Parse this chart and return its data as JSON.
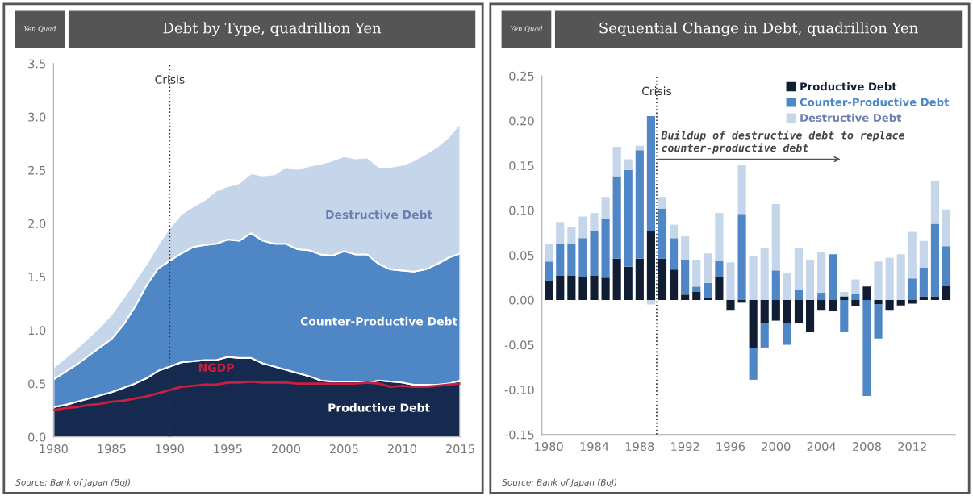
{
  "chart_data": [
    {
      "type": "area",
      "title": "Debt by Type, quadrillion Yen",
      "stacked": true,
      "x": [
        1980,
        1981,
        1982,
        1983,
        1984,
        1985,
        1986,
        1987,
        1988,
        1989,
        1990,
        1991,
        1992,
        1993,
        1994,
        1995,
        1996,
        1997,
        1998,
        1999,
        2000,
        2001,
        2002,
        2003,
        2004,
        2005,
        2006,
        2007,
        2008,
        2009,
        2010,
        2011,
        2012,
        2013,
        2014,
        2015
      ],
      "series": [
        {
          "name": "Productive Debt",
          "color": "#162a4f",
          "values": [
            0.28,
            0.3,
            0.33,
            0.36,
            0.39,
            0.42,
            0.46,
            0.5,
            0.55,
            0.62,
            0.66,
            0.7,
            0.71,
            0.72,
            0.72,
            0.75,
            0.74,
            0.74,
            0.69,
            0.66,
            0.63,
            0.6,
            0.57,
            0.53,
            0.52,
            0.52,
            0.52,
            0.51,
            0.53,
            0.52,
            0.51,
            0.49,
            0.49,
            0.49,
            0.5,
            0.53
          ]
        },
        {
          "name": "Counter-Productive Debt",
          "color": "#4f86c6",
          "values": [
            0.26,
            0.31,
            0.35,
            0.4,
            0.45,
            0.5,
            0.59,
            0.72,
            0.87,
            0.96,
            0.99,
            1.02,
            1.07,
            1.08,
            1.09,
            1.1,
            1.1,
            1.17,
            1.15,
            1.15,
            1.18,
            1.16,
            1.18,
            1.18,
            1.18,
            1.22,
            1.19,
            1.2,
            1.09,
            1.05,
            1.05,
            1.06,
            1.08,
            1.13,
            1.18,
            1.19
          ]
        },
        {
          "name": "Destructive Debt",
          "color": "#c5d5ea",
          "values": [
            0.11,
            0.13,
            0.15,
            0.17,
            0.19,
            0.23,
            0.25,
            0.24,
            0.2,
            0.22,
            0.31,
            0.37,
            0.38,
            0.42,
            0.5,
            0.5,
            0.54,
            0.56,
            0.61,
            0.65,
            0.72,
            0.75,
            0.79,
            0.85,
            0.89,
            0.89,
            0.9,
            0.91,
            0.91,
            0.96,
            0.99,
            1.04,
            1.08,
            1.1,
            1.13,
            1.22
          ]
        },
        {
          "name": "NGDP",
          "type": "line",
          "color": "#c8203f",
          "values": [
            0.25,
            0.27,
            0.28,
            0.3,
            0.31,
            0.33,
            0.34,
            0.36,
            0.38,
            0.41,
            0.44,
            0.47,
            0.48,
            0.49,
            0.49,
            0.51,
            0.51,
            0.52,
            0.51,
            0.51,
            0.51,
            0.5,
            0.5,
            0.5,
            0.5,
            0.5,
            0.5,
            0.51,
            0.5,
            0.47,
            0.48,
            0.47,
            0.47,
            0.48,
            0.49,
            0.5
          ]
        }
      ],
      "xlim": [
        1980,
        2015
      ],
      "xticks": [
        1980,
        1985,
        1990,
        1995,
        2000,
        2005,
        2010,
        2015
      ],
      "ylim": [
        0,
        3.5
      ],
      "yticks": [
        {
          "value": 0,
          "label": "0.0"
        },
        {
          "value": 0.5,
          "label": "0.5"
        },
        {
          "value": 1,
          "label": "1.0"
        },
        {
          "value": 1.5,
          "label": "1.5"
        },
        {
          "value": 2,
          "label": "2.0"
        },
        {
          "value": 2.5,
          "label": "2.5"
        },
        {
          "value": 3,
          "label": "3.0"
        },
        {
          "value": 3.5,
          "label": "3.5"
        }
      ],
      "ref_lines": [
        {
          "axis": "x",
          "value": 1990,
          "label": "Crisis",
          "color": "#333333",
          "line_style": "dotted"
        }
      ],
      "annotations": [
        "Yen Quad",
        "Source: Bank of Japan (BoJ)"
      ]
    },
    {
      "type": "bar",
      "title": "Sequential Change in Debt, quadrillion Yen",
      "stacked": true,
      "x": [
        1980,
        1981,
        1982,
        1983,
        1984,
        1985,
        1986,
        1987,
        1988,
        1989,
        1990,
        1991,
        1992,
        1993,
        1994,
        1995,
        1996,
        1997,
        1998,
        1999,
        2000,
        2001,
        2002,
        2003,
        2004,
        2005,
        2006,
        2007,
        2008,
        2009,
        2010,
        2011,
        2012,
        2013,
        2014,
        2015
      ],
      "series": [
        {
          "name": "Productive Debt",
          "color": "#111d33",
          "values": [
            0.022,
            0.027,
            0.027,
            0.026,
            0.027,
            0.025,
            0.046,
            0.037,
            0.046,
            0.077,
            0.046,
            0.034,
            0.006,
            0.009,
            0.002,
            0.026,
            -0.011,
            -0.003,
            -0.054,
            -0.026,
            -0.023,
            -0.026,
            -0.026,
            -0.036,
            -0.011,
            -0.012,
            0.004,
            -0.007,
            0.015,
            -0.005,
            -0.011,
            -0.006,
            -0.004,
            0.004,
            0.004,
            0.016
          ]
        },
        {
          "name": "Counter-Productive Debt",
          "color": "#4f86c6",
          "values": [
            0.021,
            0.035,
            0.036,
            0.043,
            0.05,
            0.065,
            0.092,
            0.108,
            0.121,
            0.128,
            0.056,
            0.035,
            0.039,
            0.006,
            0.017,
            0.018,
            0,
            0.096,
            -0.035,
            -0.027,
            0.033,
            -0.024,
            0.011,
            0,
            0.008,
            0.051,
            -0.036,
            0.007,
            -0.107,
            -0.038,
            0,
            0,
            0.024,
            0.032,
            0.081,
            0.044
          ]
        },
        {
          "name": "Destructive Debt",
          "color": "#c5d5ea",
          "values": [
            0.02,
            0.025,
            0.018,
            0.024,
            0.02,
            0.025,
            0.033,
            0.012,
            0.005,
            -0.005,
            0.013,
            0.015,
            0.026,
            0.03,
            0.033,
            0.053,
            0.042,
            0.055,
            0.049,
            0.058,
            0.074,
            0.03,
            0.047,
            0.045,
            0.046,
            0,
            0.005,
            0.016,
            0,
            0.043,
            0.047,
            0.051,
            0.052,
            0.03,
            0.048,
            0.041
          ]
        }
      ],
      "xlim": [
        1979.4,
        2015.8
      ],
      "xticks": [
        1980,
        1984,
        1988,
        1992,
        1996,
        2000,
        2004,
        2008,
        2012
      ],
      "ylim": [
        -0.15,
        0.25
      ],
      "yticks": [
        {
          "value": -0.15,
          "label": "-0.15"
        },
        {
          "value": -0.1,
          "label": "-0.10"
        },
        {
          "value": -0.05,
          "label": "-0.05"
        },
        {
          "value": 0,
          "label": "0.00"
        },
        {
          "value": 0.05,
          "label": "0.05"
        },
        {
          "value": 0.1,
          "label": "0.10"
        },
        {
          "value": 0.15,
          "label": "0.15"
        },
        {
          "value": 0.2,
          "label": "0.20"
        },
        {
          "value": 0.25,
          "label": "0.25"
        }
      ],
      "legend": "top right",
      "ref_lines": [
        {
          "axis": "x",
          "value": 1989.5,
          "label": "Crisis",
          "color": "#333333",
          "line_style": "dotted"
        }
      ],
      "annotations": [
        "Yen Quad",
        {
          "text": "Buildup of destructive debt to replace\ncounter-productive debt",
          "x": 1989.5,
          "y": 0.157
        },
        "Source: Bank of Japan (BoJ)"
      ]
    }
  ]
}
